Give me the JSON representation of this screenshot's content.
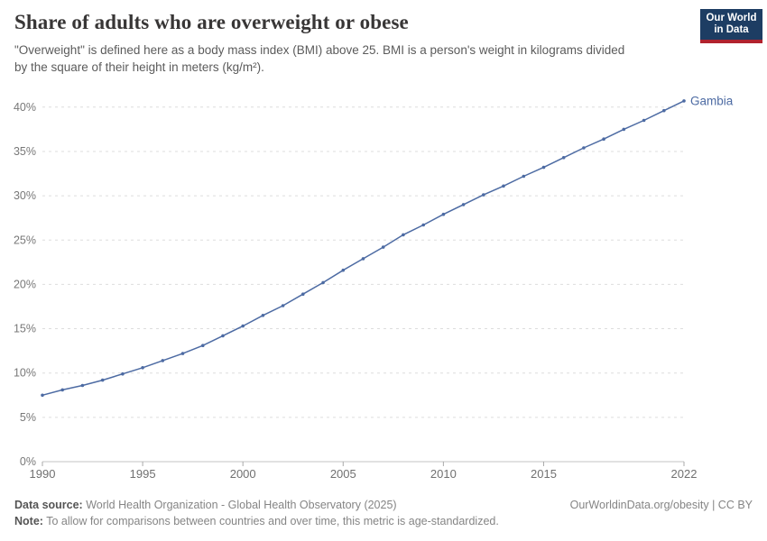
{
  "header": {
    "title": "Share of adults who are overweight or obese",
    "subtitle": "\"Overweight\" is defined here as a body mass index (BMI) above 25. BMI is a person's weight in kilograms divided by the square of their height in meters (kg/m²).",
    "logo": {
      "line1": "Our World",
      "line2": "in Data",
      "bg_color": "#1d3d63",
      "bar_color": "#b1232e"
    }
  },
  "chart_data": {
    "type": "line",
    "title": "Share of adults who are overweight or obese",
    "entity_label": "Gambia",
    "line_color": "#4d6ba3",
    "grid": "horizontal-dashed",
    "xlim": [
      1990,
      2022
    ],
    "ylim": [
      0,
      40
    ],
    "x_ticks": [
      1990,
      1995,
      2000,
      2005,
      2010,
      2015,
      2022
    ],
    "y_ticks": [
      0,
      5,
      10,
      15,
      20,
      25,
      30,
      35,
      40
    ],
    "y_tick_suffix": "%",
    "series": [
      {
        "name": "Gambia",
        "x": [
          1990,
          1991,
          1992,
          1993,
          1994,
          1995,
          1996,
          1997,
          1998,
          1999,
          2000,
          2001,
          2002,
          2003,
          2004,
          2005,
          2006,
          2007,
          2008,
          2009,
          2010,
          2011,
          2012,
          2013,
          2014,
          2015,
          2016,
          2017,
          2018,
          2019,
          2020,
          2021,
          2022
        ],
        "values": [
          7.5,
          8.1,
          8.6,
          9.2,
          9.9,
          10.6,
          11.4,
          12.2,
          13.1,
          14.2,
          15.3,
          16.5,
          17.6,
          18.9,
          20.2,
          21.6,
          22.9,
          24.2,
          25.6,
          26.7,
          27.9,
          29.0,
          30.1,
          31.1,
          32.2,
          33.2,
          34.3,
          35.4,
          36.4,
          37.5,
          38.5,
          39.6,
          40.7
        ]
      }
    ]
  },
  "footer": {
    "datasource_label": "Data source:",
    "datasource": " World Health Organization - Global Health Observatory (2025)",
    "rights": "OurWorldinData.org/obesity | CC BY",
    "note_label": "Note:",
    "note": " To allow for comparisons between countries and over time, this metric is age-standardized."
  }
}
